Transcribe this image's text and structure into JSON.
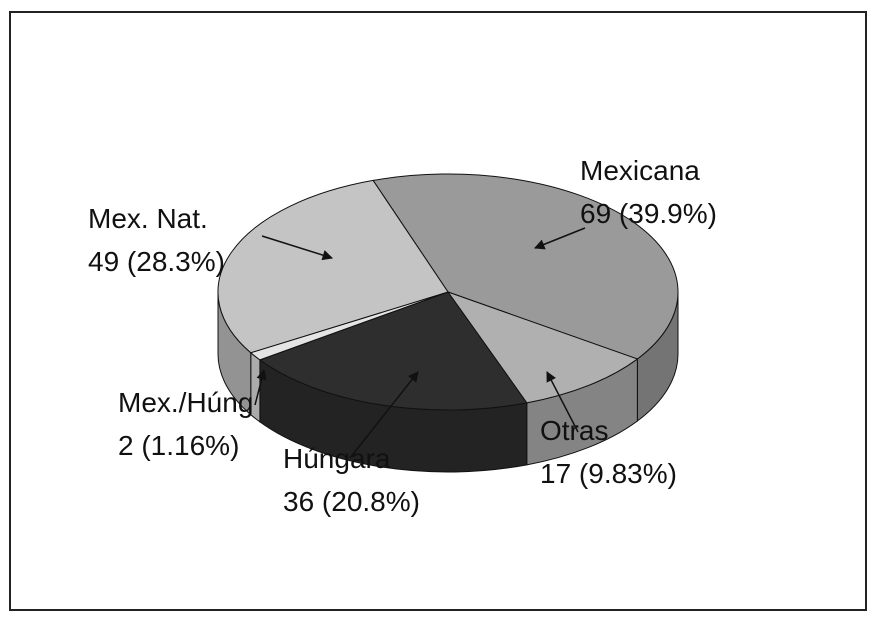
{
  "chart_data": {
    "type": "pie3d",
    "categories": [
      "Mexicana",
      "Otras",
      "Húngara",
      "Mex./Húng",
      "Mex. Nat."
    ],
    "values": [
      69,
      17,
      36,
      2,
      49
    ],
    "value_labels": [
      "69 (39.9%)",
      "17 (9.83%)",
      "36 (20.8%)",
      "2 (1.16%)",
      "49 (28.3%)"
    ],
    "colors": [
      "#9a9a9a",
      "#b0b0b0",
      "#2e2e2e",
      "#e4e4e4",
      "#c4c4c4"
    ]
  }
}
